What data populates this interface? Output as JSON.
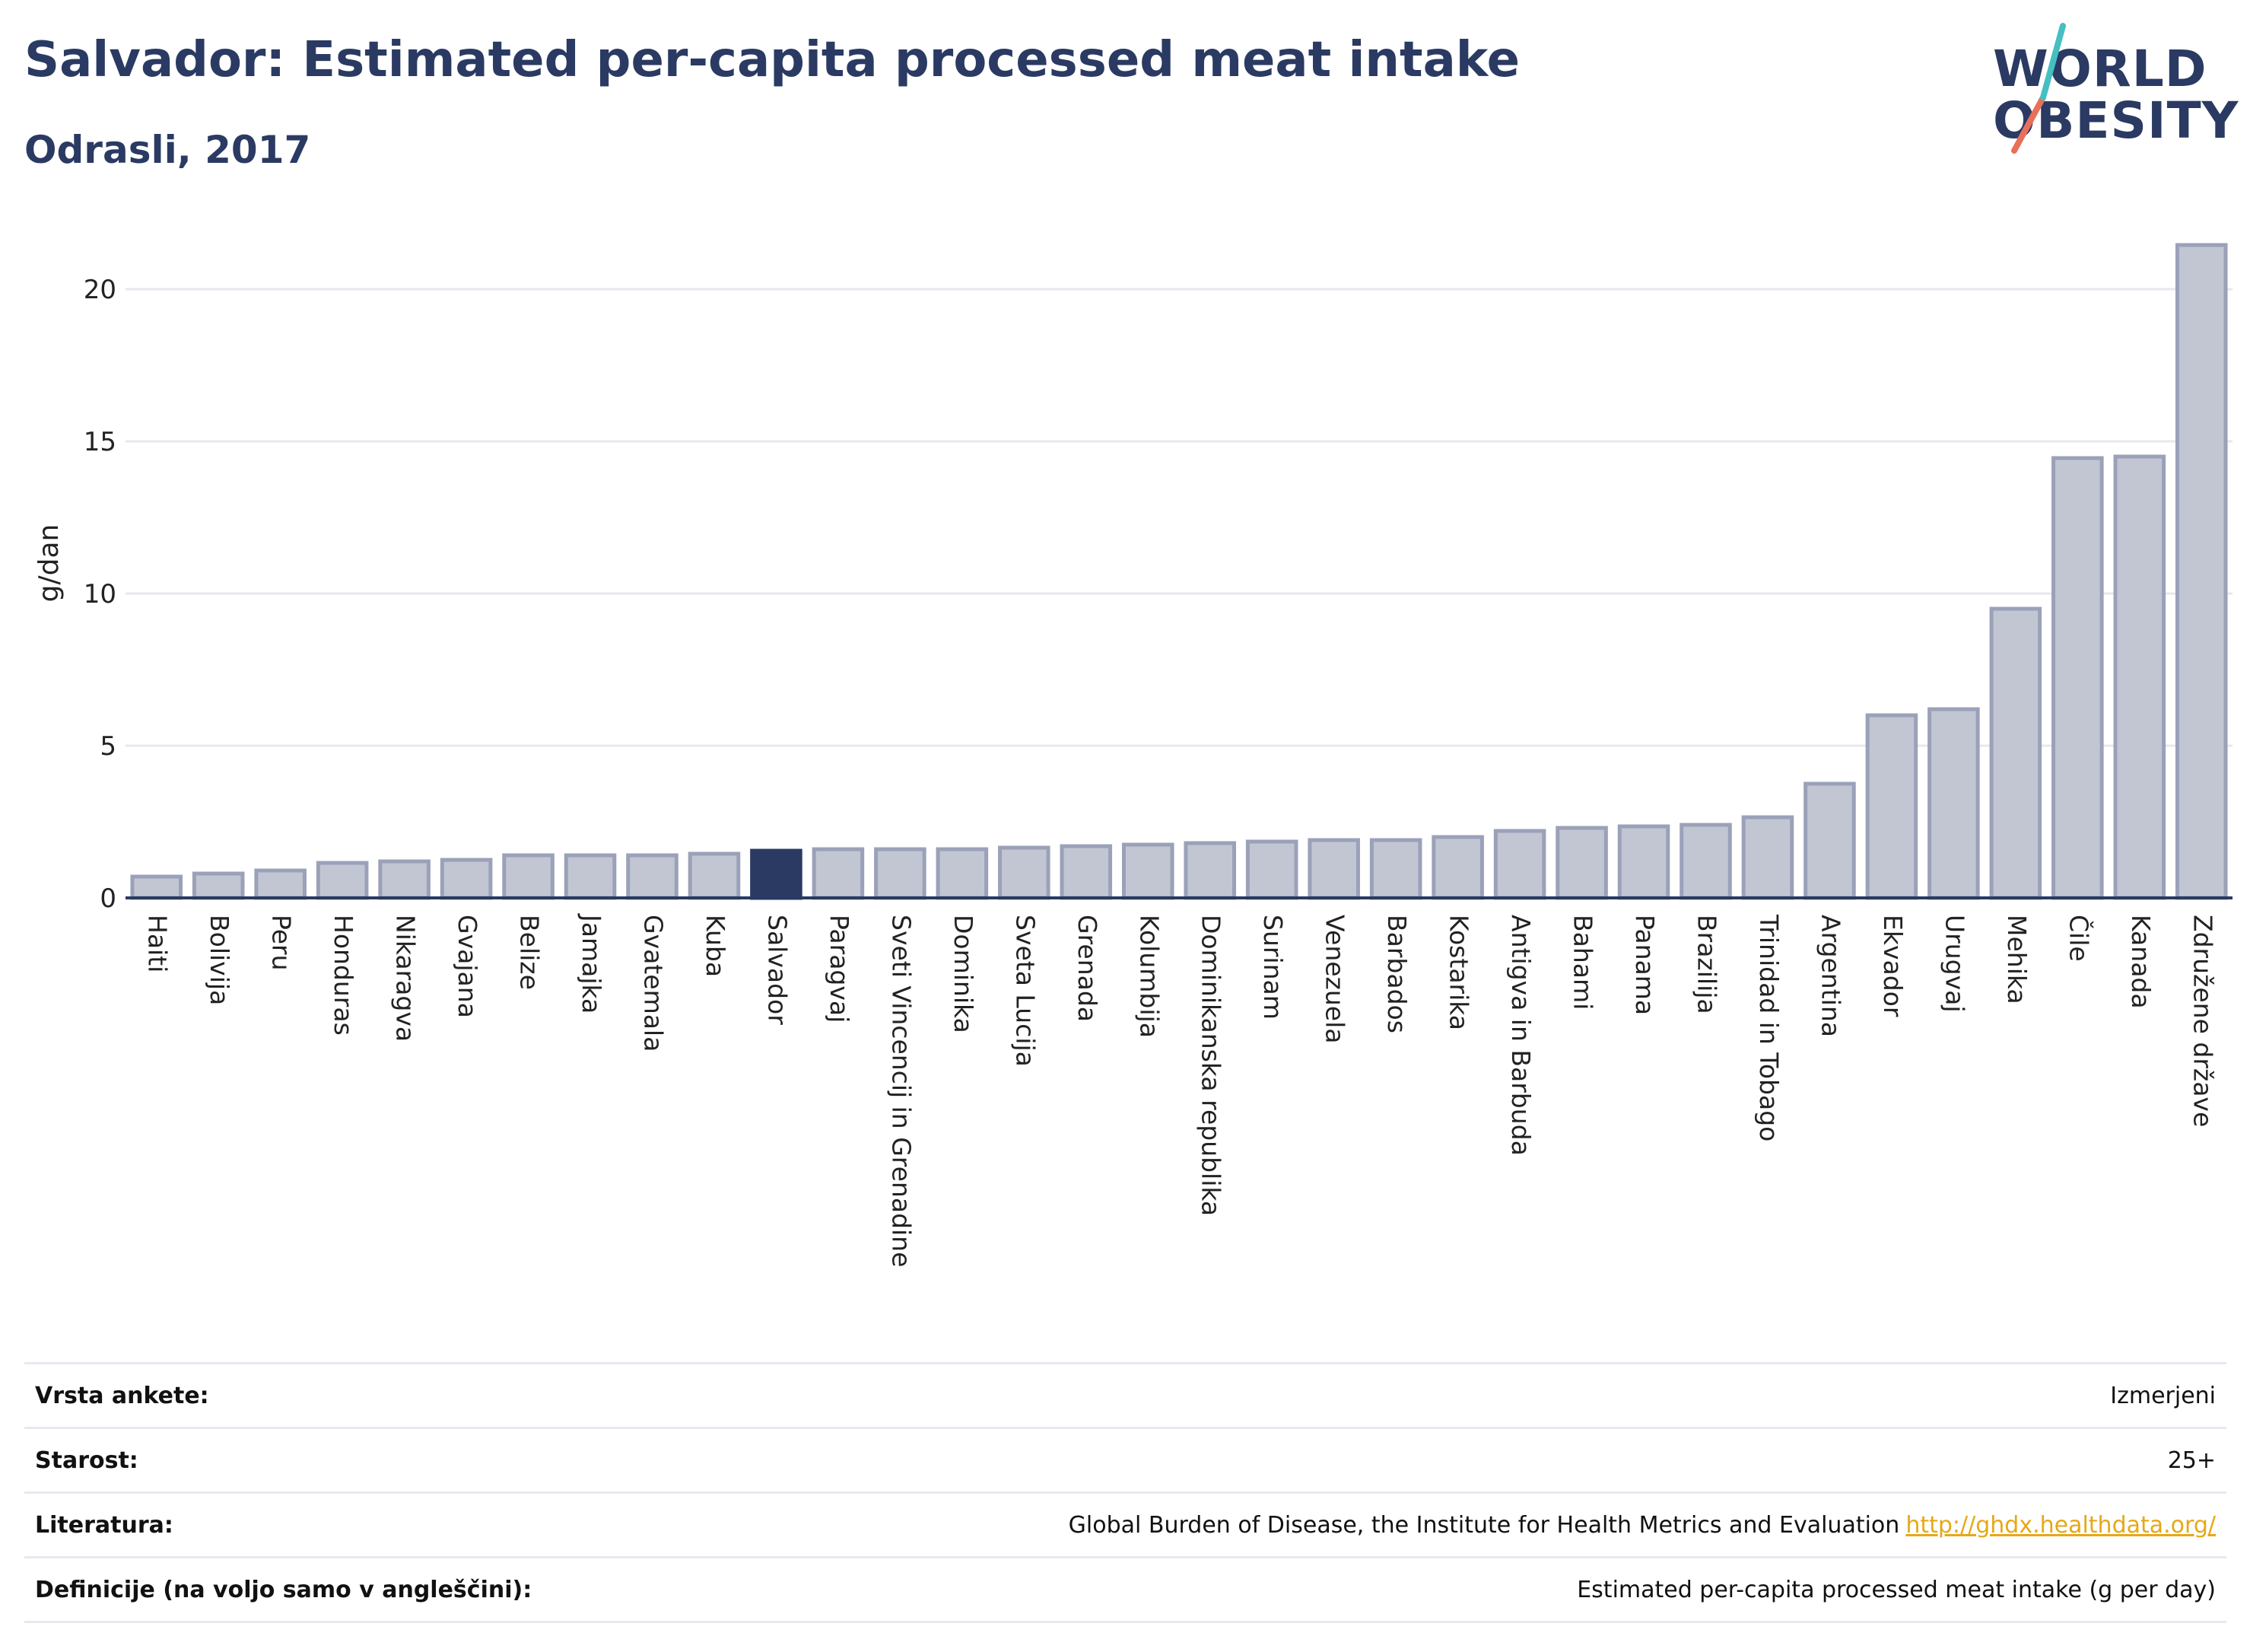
{
  "header": {
    "title": "Salvador: Estimated per-capita processed meat intake",
    "subtitle": "Odrasli, 2017"
  },
  "logo": {
    "line1": "WORLD",
    "line2": "OBESITY"
  },
  "chart_data": {
    "type": "bar",
    "title": "Salvador: Estimated per-capita processed meat intake",
    "subtitle": "Odrasli, 2017",
    "ylabel": "g/dan",
    "xlabel": "",
    "ylim": [
      0,
      22
    ],
    "yticks": [
      0,
      5,
      10,
      15,
      20
    ],
    "grid": true,
    "highlight": "Salvador",
    "colors": {
      "bar": "#c2c6d3",
      "bar_edge": "#9aa1b8",
      "highlight": "#2a3a63",
      "grid": "#e6e8ef",
      "axis": "#2a3a63"
    },
    "categories": [
      "Haiti",
      "Bolivija",
      "Peru",
      "Honduras",
      "Nikaragva",
      "Gvajana",
      "Belize",
      "Jamajka",
      "Gvatemala",
      "Kuba",
      "Salvador",
      "Paragvaj",
      "Sveti Vincencij in Grenadine",
      "Dominika",
      "Sveta Lucija",
      "Grenada",
      "Kolumbija",
      "Dominikanska republika",
      "Surinam",
      "Venezuela",
      "Barbados",
      "Kostarika",
      "Antigva in Barbuda",
      "Bahami",
      "Panama",
      "Brazilija",
      "Trinidad in Tobago",
      "Argentina",
      "Ekvador",
      "Urugvaj",
      "Mehika",
      "Čile",
      "Kanada",
      "Združene države"
    ],
    "values": [
      0.7,
      0.8,
      0.9,
      1.15,
      1.2,
      1.25,
      1.4,
      1.4,
      1.4,
      1.45,
      1.55,
      1.6,
      1.6,
      1.6,
      1.65,
      1.7,
      1.75,
      1.8,
      1.85,
      1.9,
      1.9,
      2.0,
      2.2,
      2.3,
      2.35,
      2.4,
      2.65,
      3.75,
      6.0,
      6.2,
      9.5,
      14.45,
      14.5,
      21.45
    ]
  },
  "info": [
    {
      "label": "Vrsta ankete:",
      "value": "Izmerjeni"
    },
    {
      "label": "Starost:",
      "value": "25+"
    },
    {
      "label": "Literatura:",
      "value": "Global Burden of Disease, the Institute for Health Metrics and Evaluation",
      "link": "http://ghdx.healthdata.org/"
    },
    {
      "label": "Definicije (na voljo samo v angleščini):",
      "value": "Estimated per-capita processed meat intake (g per day)"
    }
  ]
}
